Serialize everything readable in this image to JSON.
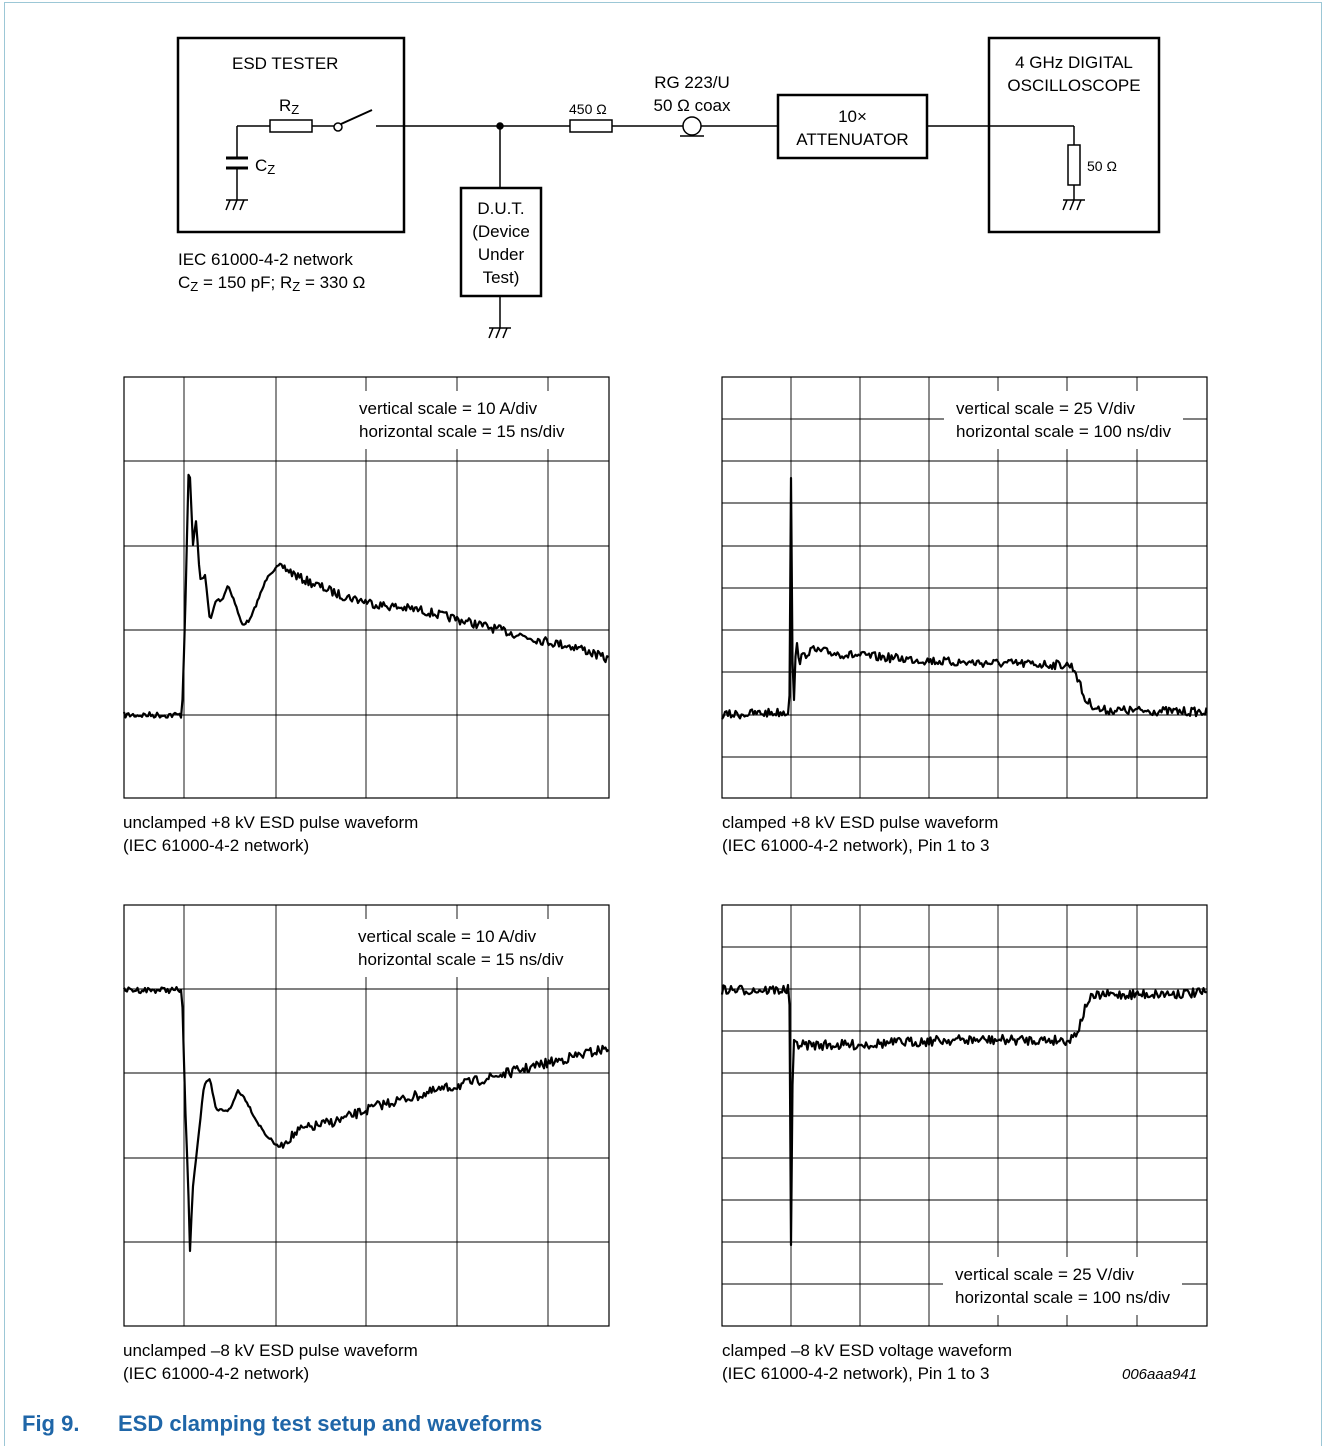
{
  "setup": {
    "esd_tester": {
      "title": "ESD TESTER",
      "r_label": "R",
      "r_sub": "Z",
      "c_label": "C",
      "c_sub": "Z"
    },
    "network_caption": {
      "line1": "IEC 61000-4-2 network",
      "c_sym": "C",
      "c_sub": "Z",
      "c_val": " = 150 pF; ",
      "r_sym": "R",
      "r_sub": "Z",
      "r_val": " = 330 Ω"
    },
    "resistor_450": "450 Ω",
    "coax": {
      "line1": "RG 223/U",
      "line2": "50 Ω coax"
    },
    "attenuator": {
      "line1": "10×",
      "line2": "ATTENUATOR"
    },
    "scope": {
      "line1": "4 GHz DIGITAL",
      "line2": "OSCILLOSCOPE",
      "load": "50 Ω"
    },
    "dut": {
      "line1": "D.U.T.",
      "line2": "(Device",
      "line3": "Under",
      "line4": "Test)"
    }
  },
  "panels": [
    {
      "scale_v": "vertical scale = 10 A/div",
      "scale_h": "horizontal scale = 15 ns/div",
      "caption1": "unclamped +8 kV ESD pulse waveform",
      "caption2": "(IEC 61000-4-2 network)"
    },
    {
      "scale_v": "vertical scale = 25 V/div",
      "scale_h": "horizontal scale = 100 ns/div",
      "caption1": "clamped +8 kV ESD pulse waveform",
      "caption2": "(IEC 61000-4-2 network), Pin 1 to 3"
    },
    {
      "scale_v": "vertical scale = 10 A/div",
      "scale_h": "horizontal scale = 15 ns/div",
      "caption1": "unclamped –8 kV ESD pulse waveform",
      "caption2": "(IEC 61000-4-2 network)"
    },
    {
      "scale_v": "vertical scale = 25 V/div",
      "scale_h": "horizontal scale = 100 ns/div",
      "caption1": "clamped –8 kV ESD voltage waveform",
      "caption2": "(IEC 61000-4-2 network), Pin 1 to 3"
    }
  ],
  "reference": "006aaa941",
  "figure": {
    "number": "Fig 9.",
    "title": "ESD clamping test setup and waveforms"
  }
}
